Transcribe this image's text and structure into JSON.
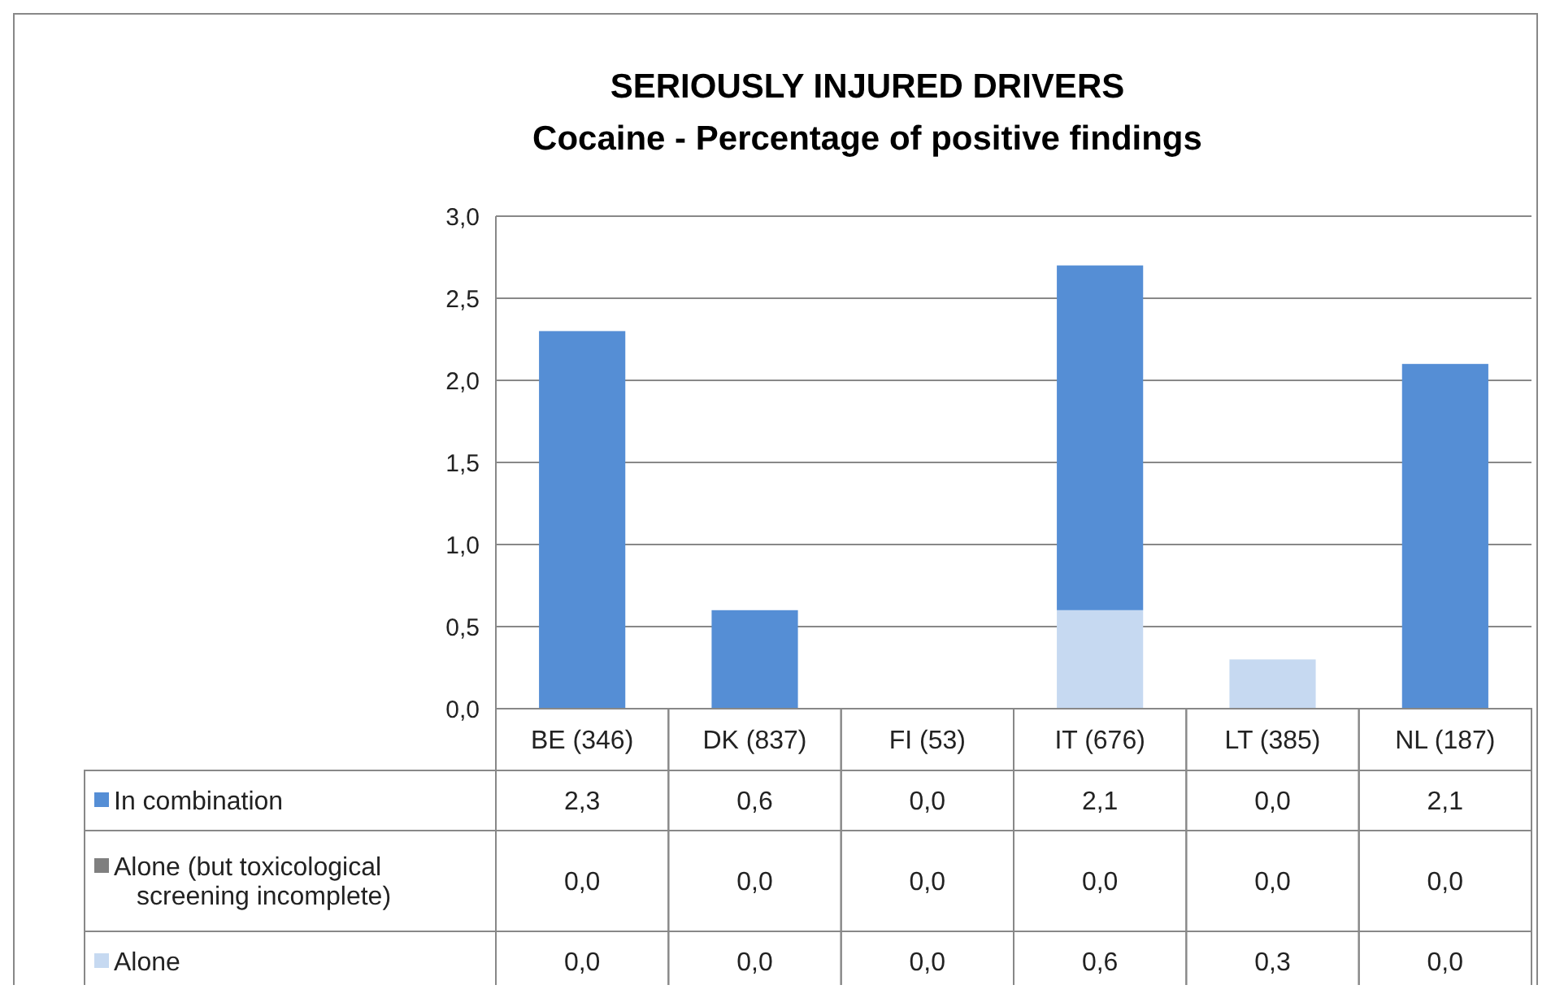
{
  "chart_data": {
    "type": "bar",
    "stacked": true,
    "title": "SERIOUSLY INJURED DRIVERS",
    "subtitle": "Cocaine - Percentage of positive findings",
    "categories": [
      "BE (346)",
      "DK (837)",
      "FI (53)",
      "IT (676)",
      "LT (385)",
      "NL (187)"
    ],
    "series": [
      {
        "name": "Alone",
        "color": "#c6d9f1",
        "values": [
          0,
          0,
          0,
          0.6,
          0.3,
          0
        ],
        "value_labels": [
          "0,0",
          "0,0",
          "0,0",
          "0,6",
          "0,3",
          "0,0"
        ]
      },
      {
        "name": "Alone (but toxicological screening incomplete)",
        "color": "#7f7f7f",
        "values": [
          0,
          0,
          0,
          0,
          0,
          0
        ],
        "value_labels": [
          "0,0",
          "0,0",
          "0,0",
          "0,0",
          "0,0",
          "0,0"
        ]
      },
      {
        "name": "In combination",
        "color": "#558ed5",
        "values": [
          2.3,
          0.6,
          0,
          2.1,
          0,
          2.1
        ],
        "value_labels": [
          "2,3",
          "0,6",
          "0,0",
          "2,1",
          "0,0",
          "2,1"
        ]
      }
    ],
    "ylim": [
      0,
      3
    ],
    "yticks": [
      {
        "value": 0,
        "label": "0,0"
      },
      {
        "value": 0.5,
        "label": "0,5"
      },
      {
        "value": 1,
        "label": "1,0"
      },
      {
        "value": 1.5,
        "label": "1,5"
      },
      {
        "value": 2,
        "label": "2,0"
      },
      {
        "value": 2.5,
        "label": "2,5"
      },
      {
        "value": 3,
        "label": "3,0"
      }
    ],
    "grid": "y",
    "legend": "bottom"
  }
}
